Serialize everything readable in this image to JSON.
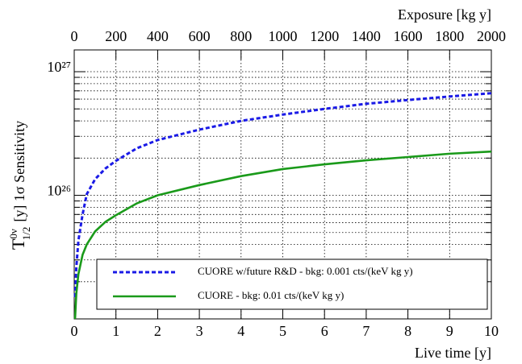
{
  "chart_data": {
    "type": "line",
    "xlabel": "Live time [y]",
    "x2label": "Exposure [kg y]",
    "ylabel": {
      "base": "T",
      "sup": "0ν",
      "sub": "1/2",
      "rest": "[y]   1σ  Sensitivity"
    },
    "x": [
      0.02,
      0.05,
      0.1,
      0.2,
      0.3,
      0.5,
      0.75,
      1,
      1.5,
      2,
      3,
      4,
      5,
      6,
      7,
      8,
      9,
      10
    ],
    "series": [
      {
        "name": "CUORE w/future R&D - bkg: 0.001 cts/(keV kg y)",
        "color": "#1a1ae6",
        "dash": true,
        "values": [
          1.5e+25,
          2.6e+25,
          4.3e+25,
          7e+25,
          1.02e+26,
          1.35e+26,
          1.65e+26,
          1.9e+26,
          2.4e+26,
          2.8e+26,
          3.4e+26,
          4e+26,
          4.5e+26,
          5e+26,
          5.5e+26,
          5.9e+26,
          6.3e+26,
          6.7e+26
        ]
      },
      {
        "name": "CUORE - bkg: 0.01 cts/(keV kg y)",
        "color": "#1a9a1a",
        "dash": false,
        "values": [
          1e+25,
          1.6e+25,
          2.3e+25,
          3.3e+25,
          4e+25,
          5.1e+25,
          6.1e+25,
          6.9e+25,
          8.6e+25,
          1e+26,
          1.21e+26,
          1.43e+26,
          1.63e+26,
          1.78e+26,
          1.92e+26,
          2.04e+26,
          2.17e+26,
          2.26e+26
        ]
      }
    ],
    "xlim": [
      0,
      10
    ],
    "xticks": [
      0,
      1,
      2,
      3,
      4,
      5,
      6,
      7,
      8,
      9,
      10
    ],
    "x2lim": [
      0,
      2000
    ],
    "x2ticks": [
      0,
      200,
      400,
      600,
      800,
      1000,
      1200,
      1400,
      1600,
      1800,
      2000
    ],
    "ylim": [
      1e+25,
      1.5e+27
    ],
    "log_y": true,
    "yticks": [
      {
        "value": 1e+26,
        "label": "10²⁶"
      },
      {
        "value": 1e+27,
        "label": "10²⁷"
      }
    ],
    "yminorticks": [
      2e+25,
      3e+25,
      4e+25,
      5e+25,
      6e+25,
      7e+25,
      8e+25,
      9e+25,
      2e+26,
      3e+26,
      4e+26,
      5e+26,
      6e+26,
      7e+26,
      8e+26,
      9e+26
    ],
    "grid": true,
    "legend": "lower right"
  }
}
